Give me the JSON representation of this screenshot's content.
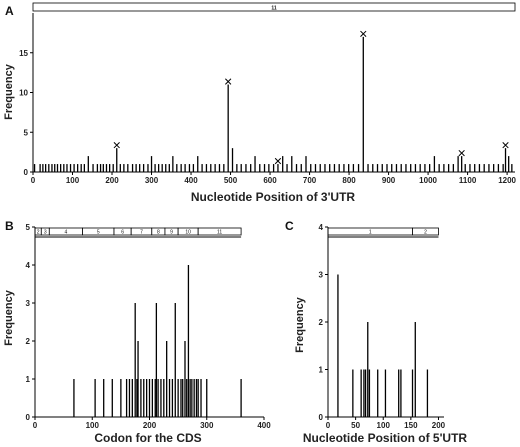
{
  "chart_data": [
    {
      "id": "A",
      "type": "bar",
      "panel_label": "A",
      "xlabel": "Nucleotide Position of 3'UTR",
      "ylabel": "Frequency",
      "xlim": [
        0,
        1220
      ],
      "ylim": [
        0,
        20
      ],
      "x_ticks": [
        0,
        100,
        200,
        300,
        400,
        500,
        600,
        700,
        800,
        900,
        1000,
        1100,
        1200
      ],
      "y_ticks": [
        0,
        5,
        10,
        15
      ],
      "region_band": [
        {
          "label": "11",
          "start": 0,
          "end": 1220
        }
      ],
      "marked_peaks": [
        {
          "x": 212,
          "y": 3,
          "marker": "x"
        },
        {
          "x": 494,
          "y": 11,
          "marker": "x"
        },
        {
          "x": 620,
          "y": 1,
          "marker": "x"
        },
        {
          "x": 836,
          "y": 17,
          "marker": "x"
        },
        {
          "x": 1085,
          "y": 2,
          "marker": "x"
        },
        {
          "x": 1196,
          "y": 3,
          "marker": "x"
        }
      ],
      "x": [
        4,
        18,
        25,
        32,
        40,
        48,
        55,
        62,
        70,
        78,
        86,
        95,
        104,
        113,
        122,
        130,
        140,
        152,
        163,
        171,
        178,
        186,
        194,
        203,
        212,
        221,
        230,
        240,
        252,
        261,
        270,
        280,
        291,
        300,
        309,
        318,
        327,
        336,
        345,
        354,
        364,
        375,
        385,
        396,
        406,
        417,
        428,
        439,
        450,
        461,
        472,
        483,
        494,
        505,
        516,
        527,
        539,
        551,
        562,
        574,
        586,
        597,
        609,
        620,
        632,
        643,
        655,
        667,
        679,
        691,
        703,
        715,
        727,
        739,
        751,
        763,
        775,
        787,
        799,
        811,
        824,
        836,
        848,
        860,
        872,
        884,
        896,
        908,
        920,
        932,
        944,
        956,
        968,
        980,
        992,
        1004,
        1016,
        1028,
        1040,
        1052,
        1064,
        1076,
        1085,
        1094,
        1106,
        1118,
        1130,
        1142,
        1154,
        1166,
        1178,
        1190,
        1196,
        1204,
        1212
      ],
      "values": [
        1,
        1,
        1,
        1,
        1,
        1,
        1,
        1,
        1,
        1,
        1,
        1,
        1,
        1,
        1,
        1,
        2,
        1,
        1,
        1,
        1,
        1,
        1,
        1,
        3,
        1,
        1,
        1,
        1,
        1,
        1,
        1,
        1,
        2,
        1,
        1,
        1,
        1,
        1,
        2,
        1,
        1,
        1,
        1,
        1,
        2,
        1,
        1,
        1,
        1,
        1,
        1,
        11,
        3,
        1,
        1,
        1,
        1,
        2,
        1,
        1,
        1,
        1,
        1,
        2,
        1,
        2,
        1,
        1,
        2,
        1,
        1,
        1,
        1,
        1,
        1,
        1,
        1,
        1,
        1,
        1,
        17,
        1,
        1,
        1,
        1,
        1,
        1,
        1,
        1,
        1,
        1,
        1,
        1,
        1,
        1,
        2,
        1,
        1,
        1,
        1,
        2,
        2,
        1,
        1,
        1,
        1,
        1,
        1,
        1,
        1,
        1,
        3,
        2,
        1
      ]
    },
    {
      "id": "B",
      "type": "bar",
      "panel_label": "B",
      "xlabel": "Codon for the CDS",
      "ylabel": "Frequency",
      "xlim": [
        0,
        400
      ],
      "ylim": [
        0,
        5
      ],
      "x_ticks": [
        0,
        100,
        200,
        300,
        400
      ],
      "y_ticks": [
        0,
        1,
        2,
        3,
        4,
        5
      ],
      "region_band": [
        {
          "label": "2",
          "start": 0,
          "end": 11
        },
        {
          "label": "3",
          "start": 11,
          "end": 25
        },
        {
          "label": "4",
          "start": 25,
          "end": 83
        },
        {
          "label": "5",
          "start": 83,
          "end": 138
        },
        {
          "label": "6",
          "start": 138,
          "end": 168
        },
        {
          "label": "7",
          "start": 168,
          "end": 204
        },
        {
          "label": "8",
          "start": 204,
          "end": 227
        },
        {
          "label": "9",
          "start": 227,
          "end": 250
        },
        {
          "label": "10",
          "start": 250,
          "end": 285
        },
        {
          "label": "11",
          "start": 285,
          "end": 360
        }
      ],
      "x": [
        68,
        105,
        120,
        135,
        150,
        160,
        165,
        170,
        175,
        178,
        180,
        185,
        190,
        195,
        200,
        205,
        210,
        212,
        215,
        220,
        225,
        230,
        235,
        240,
        245,
        250,
        255,
        258,
        262,
        265,
        268,
        271,
        274,
        278,
        282,
        285,
        290,
        300,
        360
      ],
      "values": [
        1,
        1,
        1,
        1,
        1,
        1,
        1,
        1,
        3,
        1,
        2,
        1,
        1,
        1,
        1,
        1,
        1,
        3,
        1,
        1,
        1,
        2,
        1,
        1,
        3,
        1,
        1,
        1,
        2,
        1,
        4,
        1,
        1,
        1,
        1,
        1,
        1,
        1,
        1
      ]
    },
    {
      "id": "C",
      "type": "bar",
      "panel_label": "C",
      "xlabel": "Nucleotide Position of 5'UTR",
      "ylabel": "Frequency",
      "xlim": [
        0,
        210
      ],
      "ylim": [
        0,
        4
      ],
      "x_ticks": [
        0,
        50,
        100,
        150,
        200
      ],
      "y_ticks": [
        0,
        1,
        2,
        3,
        4
      ],
      "region_band": [
        {
          "label": "1",
          "start": 0,
          "end": 153
        },
        {
          "label": "2",
          "start": 153,
          "end": 200
        }
      ],
      "x": [
        18,
        45,
        60,
        65,
        68,
        72,
        75,
        90,
        104,
        128,
        132,
        153,
        158,
        180
      ],
      "values": [
        3,
        1,
        1,
        1,
        1,
        2,
        1,
        1,
        1,
        1,
        1,
        1,
        2,
        1
      ]
    }
  ]
}
